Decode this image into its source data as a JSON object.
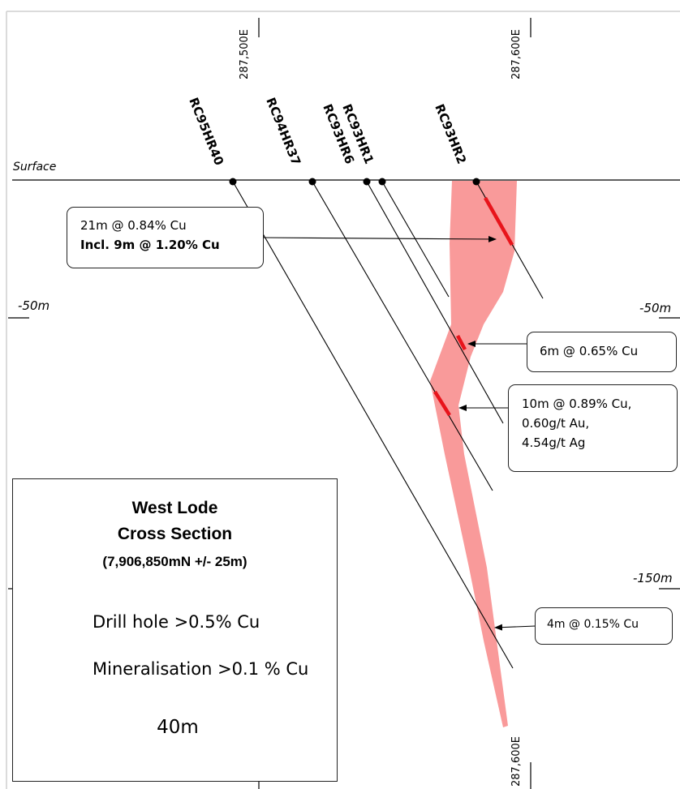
{
  "eastings": {
    "top_left": "287,500E",
    "top_right": "287,600E",
    "bottom": "287,600E"
  },
  "surface_label": "Surface",
  "depth_labels": {
    "left_minus50": "-50m",
    "right_minus50": "-50m",
    "right_minus150": "-150m"
  },
  "drill_holes": [
    {
      "id": "RC95HR40"
    },
    {
      "id": "RC94HR37"
    },
    {
      "id": "RC93HR6"
    },
    {
      "id": "RC93HR1"
    },
    {
      "id": "RC93HR2"
    }
  ],
  "callouts": {
    "c1_line1": "21m @ 0.84% Cu",
    "c1_line2": "Incl. 9m @ 1.20% Cu",
    "c2": "6m @ 0.65% Cu",
    "c3_line1": "10m @ 0.89% Cu,",
    "c3_line2": "0.60g/t Au,",
    "c3_line3": "4.54g/t Ag",
    "c4": "4m @ 0.15% Cu"
  },
  "legend": {
    "title_line1": "West Lode",
    "title_line2": "Cross Section",
    "title_line3": "(7,906,850mN +/- 25m)",
    "drill_hole_item": "Drill hole >0.5% Cu",
    "mineralisation_item": "Mineralisation >0.1 % Cu",
    "scale_label": "40m"
  },
  "colors": {
    "mineralisation": "#f99a9a",
    "drill_intercept": "#e8141b",
    "line": "#000000"
  }
}
